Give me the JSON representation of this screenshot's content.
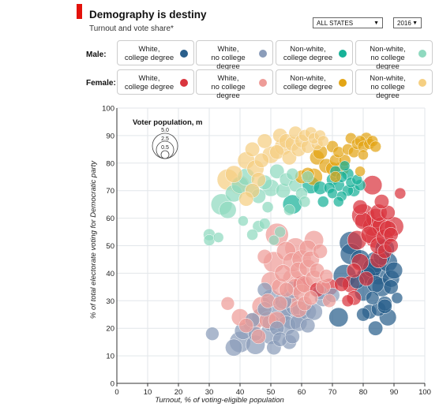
{
  "header": {
    "title": "Demography is destiny",
    "subtitle": "Turnout and vote share*"
  },
  "controls": {
    "states_select": "ALL STATES",
    "year_select": "2016"
  },
  "legend": {
    "male_label": "Male:",
    "female_label": "Female:",
    "male_cards": [
      {
        "line1": "White,",
        "line2": "college degree",
        "color": "#2a5f8c"
      },
      {
        "line1": "White,",
        "line2": "no college degree",
        "color": "#8b9dba"
      },
      {
        "line1": "Non-white,",
        "line2": "college degree",
        "color": "#17b298"
      },
      {
        "line1": "Non-white,",
        "line2": "no college degree",
        "color": "#8fd9bf"
      }
    ],
    "female_cards": [
      {
        "line1": "White,",
        "line2": "college degree",
        "color": "#d9353e"
      },
      {
        "line1": "White,",
        "line2": "no college degree",
        "color": "#ee9c98"
      },
      {
        "line1": "Non-white,",
        "line2": "college degree",
        "color": "#e3a516"
      },
      {
        "line1": "Non-white,",
        "line2": "no college degree",
        "color": "#f5cf82"
      }
    ]
  },
  "chart_data": {
    "type": "scatter",
    "xlabel": "Turnout, % of voting-eligible population",
    "ylabel": "% of total electorate voting for Democratic party",
    "xlim": [
      0,
      100
    ],
    "ylim": [
      0,
      100
    ],
    "xticks": [
      "0",
      "10",
      "20",
      "30",
      "40",
      "50",
      "60",
      "70",
      "80",
      "90",
      "100"
    ],
    "yticks": [
      "0",
      "10",
      "20",
      "30",
      "40",
      "50",
      "60",
      "70",
      "80",
      "90",
      "100"
    ],
    "grid": true,
    "size_legend": {
      "title": "Voter population, m",
      "values": [
        "5.0",
        "2.5",
        "0.5"
      ],
      "placement": "top-left"
    },
    "series": [
      {
        "name": "White male, college degree",
        "color": "#2a5f8c",
        "points": [
          [
            72,
            24,
            2
          ],
          [
            74,
            39,
            3
          ],
          [
            76,
            47,
            2.5
          ],
          [
            76,
            51,
            3
          ],
          [
            79,
            45,
            2
          ],
          [
            80,
            33,
            1.5
          ],
          [
            81,
            39,
            2
          ],
          [
            82,
            40,
            2.5
          ],
          [
            82,
            26,
            1
          ],
          [
            83,
            42,
            2
          ],
          [
            84,
            36,
            1.5
          ],
          [
            84,
            44,
            2.5
          ],
          [
            85,
            27,
            1
          ],
          [
            85,
            40,
            3
          ],
          [
            86,
            35,
            2
          ],
          [
            86,
            46,
            1.5
          ],
          [
            87,
            49,
            2
          ],
          [
            87,
            29,
            1
          ],
          [
            88,
            44,
            2
          ],
          [
            89,
            38,
            1.5
          ],
          [
            89,
            35,
            1
          ],
          [
            90,
            41,
            1.5
          ],
          [
            88,
            24,
            1.5
          ],
          [
            84,
            20,
            1
          ],
          [
            87,
            28,
            1
          ],
          [
            80,
            25,
            0.8
          ],
          [
            91,
            31,
            0.5
          ],
          [
            83,
            31,
            0.8
          ],
          [
            78,
            37,
            1
          ]
        ]
      },
      {
        "name": "White male, no college degree",
        "color": "#8b9dba",
        "points": [
          [
            31,
            18,
            0.8
          ],
          [
            38,
            13,
            1.5
          ],
          [
            40,
            15,
            2.5
          ],
          [
            41,
            19,
            1.5
          ],
          [
            45,
            14,
            2
          ],
          [
            45,
            18,
            1
          ],
          [
            47,
            24,
            2
          ],
          [
            48,
            27,
            1
          ],
          [
            50,
            18,
            2.5
          ],
          [
            50,
            22,
            1.5
          ],
          [
            50,
            31,
            1.5
          ],
          [
            51,
            13,
            1
          ],
          [
            52,
            20,
            1
          ],
          [
            53,
            26,
            3
          ],
          [
            54,
            30,
            1.5
          ],
          [
            55,
            21,
            2
          ],
          [
            56,
            15,
            1
          ],
          [
            57,
            24,
            3.5
          ],
          [
            57,
            34,
            1.5
          ],
          [
            58,
            28,
            2
          ],
          [
            59,
            22,
            1.5
          ],
          [
            60,
            27,
            2
          ],
          [
            62,
            21,
            1
          ],
          [
            62,
            26,
            1.5
          ],
          [
            64,
            26,
            1.5
          ],
          [
            66,
            33,
            1
          ],
          [
            67,
            31,
            1.5
          ],
          [
            70,
            32,
            1
          ],
          [
            53,
            16,
            1
          ],
          [
            57,
            17,
            1
          ],
          [
            48,
            34,
            1
          ],
          [
            44,
            23,
            1
          ]
        ]
      },
      {
        "name": "Non-white male, college degree",
        "color": "#17b298",
        "points": [
          [
            57,
            65,
            2
          ],
          [
            63,
            72,
            1.5
          ],
          [
            66,
            71,
            0.8
          ],
          [
            69,
            71,
            0.5
          ],
          [
            70,
            74,
            0.6
          ],
          [
            70,
            69,
            0.4
          ],
          [
            71,
            77,
            0.5
          ],
          [
            72,
            72,
            0.6
          ],
          [
            73,
            75,
            0.5
          ],
          [
            73,
            68,
            0.4
          ],
          [
            75,
            76,
            0.6
          ],
          [
            75,
            70,
            0.5
          ],
          [
            76,
            73,
            0.4
          ],
          [
            77,
            70,
            0.6
          ],
          [
            78,
            74,
            0.4
          ],
          [
            79,
            72,
            0.5
          ],
          [
            74,
            79,
            0.4
          ],
          [
            67,
            66,
            0.5
          ],
          [
            72,
            66,
            0.4
          ]
        ]
      },
      {
        "name": "Non-white male, no college degree",
        "color": "#8fd9bf",
        "points": [
          [
            30,
            54,
            0.6
          ],
          [
            30,
            52,
            0.5
          ],
          [
            33,
            53,
            0.4
          ],
          [
            34,
            65,
            2.5
          ],
          [
            36,
            63,
            1.5
          ],
          [
            38,
            69,
            1.5
          ],
          [
            40,
            72,
            1.5
          ],
          [
            42,
            75,
            1.5
          ],
          [
            44,
            70,
            1
          ],
          [
            46,
            68,
            1
          ],
          [
            48,
            73,
            1
          ],
          [
            50,
            71,
            1.5
          ],
          [
            52,
            77,
            1
          ],
          [
            54,
            70,
            1
          ],
          [
            55,
            74,
            0.8
          ],
          [
            57,
            76,
            0.6
          ],
          [
            58,
            72,
            0.8
          ],
          [
            60,
            69,
            0.6
          ],
          [
            61,
            66,
            0.5
          ],
          [
            62,
            75,
            0.6
          ],
          [
            44,
            54,
            0.5
          ],
          [
            46,
            57,
            0.6
          ],
          [
            48,
            58,
            0.5
          ],
          [
            51,
            52,
            0.4
          ],
          [
            53,
            55,
            0.5
          ],
          [
            41,
            59,
            0.4
          ],
          [
            56,
            63,
            0.5
          ],
          [
            49,
            64,
            0.5
          ]
        ]
      },
      {
        "name": "White female, college degree",
        "color": "#d9353e",
        "points": [
          [
            60,
            36,
            1.5
          ],
          [
            65,
            34,
            1
          ],
          [
            69,
            35,
            1.5
          ],
          [
            73,
            36,
            1
          ],
          [
            76,
            36,
            1.5
          ],
          [
            77,
            31,
            1
          ],
          [
            78,
            52,
            2
          ],
          [
            79,
            44,
            1.5
          ],
          [
            80,
            59,
            1.5
          ],
          [
            80,
            61,
            3
          ],
          [
            82,
            54,
            1.5
          ],
          [
            83,
            57,
            2
          ],
          [
            84,
            53,
            2.5
          ],
          [
            84,
            60,
            2
          ],
          [
            85,
            45,
            1.5
          ],
          [
            85,
            50,
            1.5
          ],
          [
            85,
            62,
            1.5
          ],
          [
            86,
            57,
            2
          ],
          [
            87,
            53,
            1.5
          ],
          [
            87,
            48,
            1
          ],
          [
            88,
            56,
            1.5
          ],
          [
            88,
            62,
            1
          ],
          [
            89,
            54,
            1
          ],
          [
            89,
            50,
            1
          ],
          [
            90,
            57,
            2
          ],
          [
            86,
            66,
            1
          ],
          [
            83,
            72,
            2
          ],
          [
            79,
            64,
            1
          ],
          [
            81,
            38,
            1
          ],
          [
            77,
            41,
            1
          ],
          [
            92,
            69,
            0.5
          ],
          [
            75,
            30,
            0.6
          ]
        ]
      },
      {
        "name": "White female, no college degree",
        "color": "#ee9c98",
        "points": [
          [
            36,
            29,
            0.8
          ],
          [
            40,
            24,
            1.5
          ],
          [
            42,
            21,
            1
          ],
          [
            44,
            22,
            2
          ],
          [
            46,
            17,
            1
          ],
          [
            47,
            28,
            2
          ],
          [
            49,
            30,
            1
          ],
          [
            49,
            23,
            1.5
          ],
          [
            50,
            37,
            2
          ],
          [
            51,
            44,
            2.5
          ],
          [
            52,
            23,
            1.5
          ],
          [
            52,
            54,
            3
          ],
          [
            53,
            35,
            1.5
          ],
          [
            54,
            40,
            1.5
          ],
          [
            55,
            48,
            2
          ],
          [
            56,
            31,
            2
          ],
          [
            57,
            38,
            2
          ],
          [
            57,
            44,
            2
          ],
          [
            58,
            35,
            1.5
          ],
          [
            58,
            49,
            2.5
          ],
          [
            59,
            27,
            1.5
          ],
          [
            59,
            41,
            1.5
          ],
          [
            60,
            33,
            1.5
          ],
          [
            60,
            45,
            2
          ],
          [
            61,
            36,
            1.5
          ],
          [
            61,
            29,
            1
          ],
          [
            62,
            42,
            1.5
          ],
          [
            62,
            49,
            1.5
          ],
          [
            63,
            31,
            1
          ],
          [
            63,
            45,
            1.5
          ],
          [
            64,
            38,
            1.5
          ],
          [
            64,
            52,
            2
          ],
          [
            65,
            41,
            1
          ],
          [
            66,
            48,
            1
          ],
          [
            67,
            35,
            1
          ],
          [
            68,
            39,
            0.8
          ],
          [
            69,
            30,
            0.8
          ],
          [
            48,
            46,
            1
          ],
          [
            53,
            29,
            1
          ],
          [
            55,
            34,
            1
          ]
        ]
      },
      {
        "name": "Non-white female, college degree",
        "color": "#e3a516",
        "points": [
          [
            60,
            75,
            0.8
          ],
          [
            62,
            76,
            0.8
          ],
          [
            64,
            75,
            1.5
          ],
          [
            65,
            82,
            1
          ],
          [
            66,
            84,
            1
          ],
          [
            68,
            79,
            1
          ],
          [
            70,
            78,
            0.8
          ],
          [
            70,
            86,
            0.6
          ],
          [
            71,
            81,
            0.6
          ],
          [
            72,
            84,
            0.5
          ],
          [
            73,
            78,
            1
          ],
          [
            74,
            81,
            0.6
          ],
          [
            75,
            85,
            0.5
          ],
          [
            76,
            89,
            0.5
          ],
          [
            77,
            84,
            0.5
          ],
          [
            78,
            87,
            0.5
          ],
          [
            79,
            88,
            0.5
          ],
          [
            80,
            86,
            0.5
          ],
          [
            81,
            89,
            0.6
          ],
          [
            82,
            87,
            0.5
          ],
          [
            83,
            88,
            0.5
          ],
          [
            84,
            86,
            0.5
          ],
          [
            80,
            83,
            0.4
          ],
          [
            71,
            75,
            0.5
          ],
          [
            79,
            77,
            0.4
          ]
        ]
      },
      {
        "name": "Non-white female, no college degree",
        "color": "#f5cf82",
        "points": [
          [
            36,
            74,
            2.5
          ],
          [
            38,
            76,
            1.5
          ],
          [
            40,
            72,
            2
          ],
          [
            42,
            81,
            1.5
          ],
          [
            44,
            85,
            1
          ],
          [
            45,
            78,
            1.5
          ],
          [
            47,
            81,
            1
          ],
          [
            48,
            88,
            1
          ],
          [
            50,
            83,
            1.5
          ],
          [
            52,
            84,
            1
          ],
          [
            53,
            90,
            1
          ],
          [
            54,
            86,
            1.5
          ],
          [
            55,
            88,
            1
          ],
          [
            56,
            82,
            1
          ],
          [
            57,
            87,
            1
          ],
          [
            58,
            91,
            0.8
          ],
          [
            59,
            85,
            1
          ],
          [
            60,
            88,
            0.8
          ],
          [
            61,
            90,
            0.6
          ],
          [
            62,
            86,
            0.8
          ],
          [
            63,
            91,
            0.6
          ],
          [
            64,
            89,
            0.5
          ],
          [
            65,
            87,
            0.6
          ],
          [
            66,
            90,
            0.5
          ],
          [
            67,
            88,
            0.5
          ],
          [
            46,
            74,
            1
          ],
          [
            44,
            70,
            1
          ],
          [
            42,
            67,
            1
          ]
        ]
      }
    ]
  }
}
